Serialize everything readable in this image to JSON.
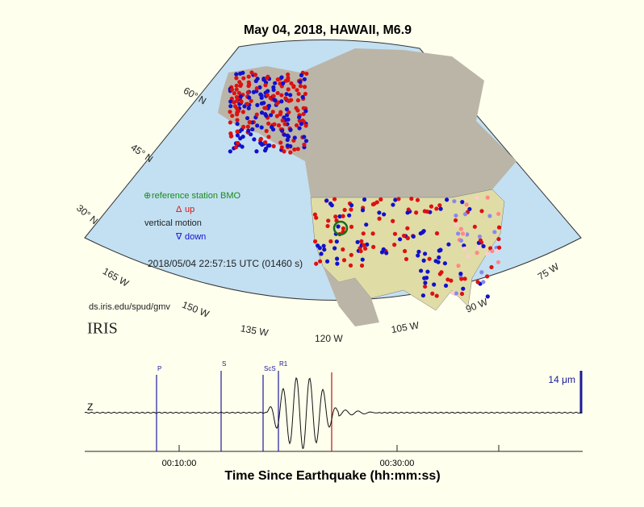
{
  "title": "May 04, 2018, HAWAII, M6.9",
  "map": {
    "lat_labels": [
      "60° N",
      "45° N",
      "30° N"
    ],
    "lon_labels": [
      "165 W",
      "150 W",
      "135 W",
      "120 W",
      "105 W",
      "90 W",
      "75 W"
    ],
    "legend": {
      "reference": "reference station BMO",
      "up": "up",
      "motion": "vertical motion",
      "down": "down"
    },
    "timestamp": "2018/05/04 22:57:15 UTC (01460 s)",
    "url": "ds.iris.edu/spud/gmv",
    "logo": "IRIS"
  },
  "seismogram": {
    "component": "Z",
    "phases": [
      "P",
      "S",
      "ScS",
      "R1"
    ],
    "scale": "14 μm",
    "time_labels": [
      "00:10:00",
      "00:30:00"
    ],
    "xlabel": "Time Since Earthquake (hh:mm:ss)"
  }
}
